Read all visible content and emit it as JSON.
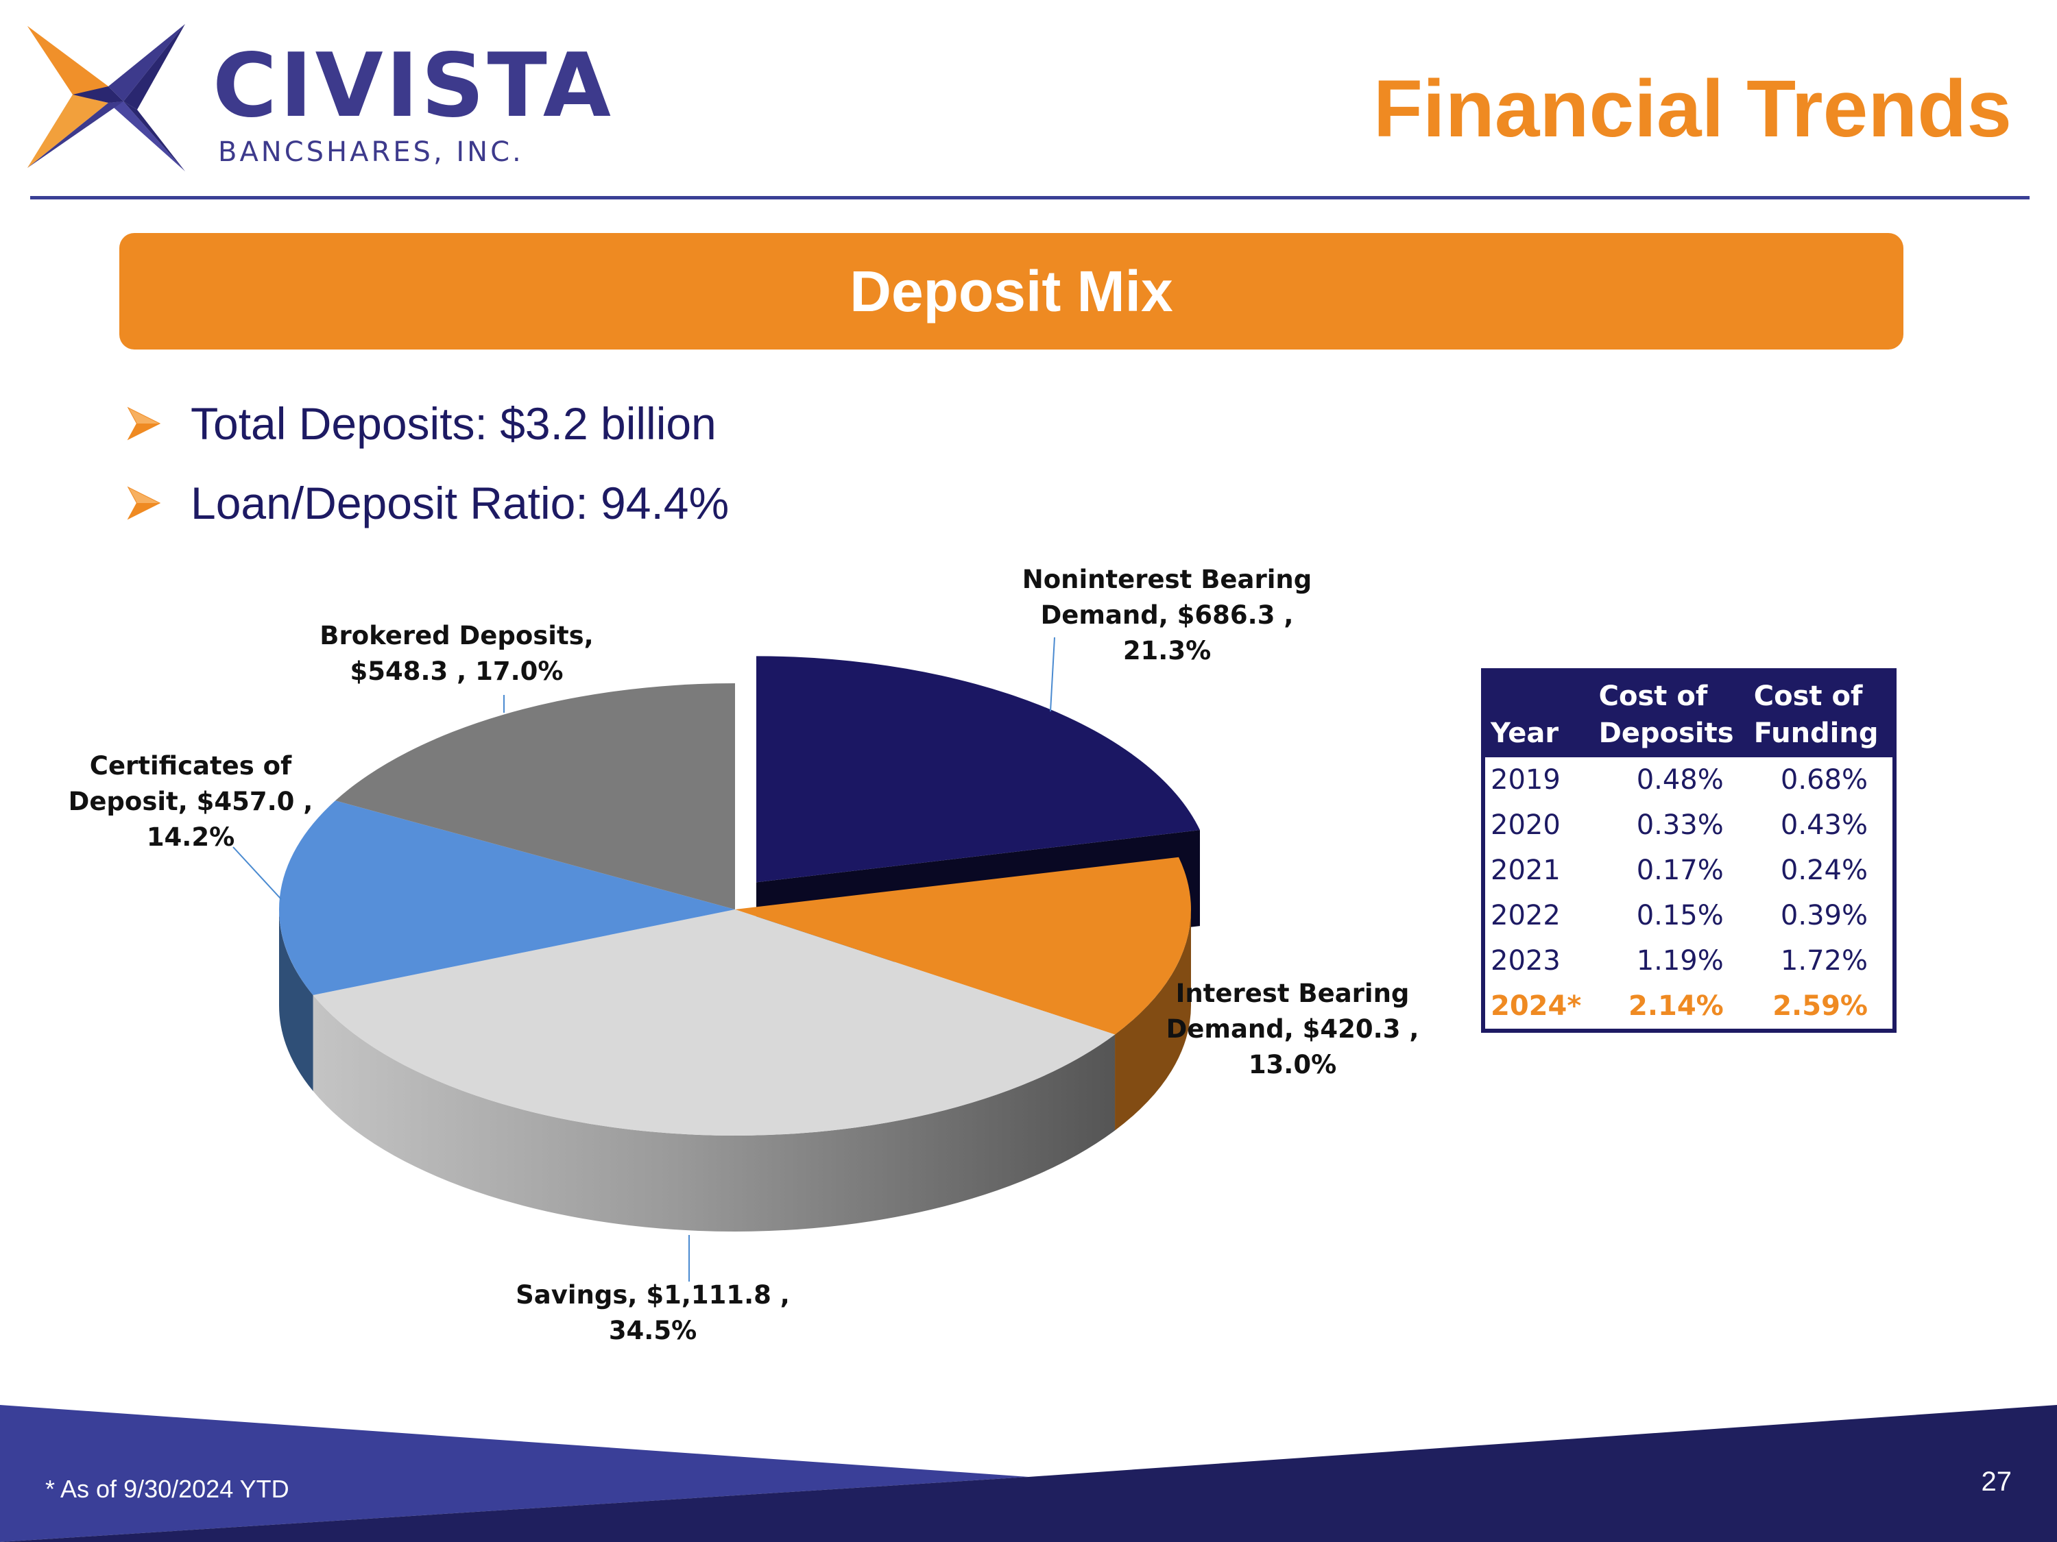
{
  "logo": {
    "name": "CIVISTA",
    "subtitle": "BANCSHARES, INC."
  },
  "header": {
    "title": "Financial Trends"
  },
  "banner": {
    "title": "Deposit Mix"
  },
  "bullets": [
    "Total Deposits: $3.2 billion",
    "Loan/Deposit Ratio: 94.4%"
  ],
  "chart_data": {
    "type": "pie",
    "style": "3d-exploded",
    "slices": [
      {
        "label": "Noninterest Bearing Demand",
        "value": 686.3,
        "percent": 21.3,
        "label_lines": [
          "Noninterest Bearing",
          "Demand, $686.3 ,",
          "21.3%"
        ],
        "color": "#1b1763",
        "exploded": true
      },
      {
        "label": "Interest Bearing Demand",
        "value": 420.3,
        "percent": 13.0,
        "label_lines": [
          "Interest Bearing",
          "Demand, $420.3 ,",
          "13.0%"
        ],
        "color": "#ec8a22"
      },
      {
        "label": "Savings",
        "value": 1111.8,
        "percent": 34.5,
        "label_lines": [
          "Savings, $1,111.8 ,",
          "34.5%"
        ],
        "color": "#d9d9d9"
      },
      {
        "label": "Certificates of Deposit",
        "value": 457.0,
        "percent": 14.2,
        "label_lines": [
          "Certificates of",
          "Deposit, $457.0 ,",
          "14.2%"
        ],
        "color": "#568fd9"
      },
      {
        "label": "Brokered Deposits",
        "value": 548.3,
        "percent": 17.0,
        "label_lines": [
          "Brokered Deposits,",
          "$548.3 , 17.0%"
        ],
        "color": "#7b7b7b"
      }
    ]
  },
  "cost_table": {
    "headers": [
      [
        "",
        "Year"
      ],
      [
        "Cost of",
        "Deposits"
      ],
      [
        "Cost of",
        "Funding"
      ]
    ],
    "rows": [
      [
        "2019",
        "0.48%",
        "0.68%"
      ],
      [
        "2020",
        "0.33%",
        "0.43%"
      ],
      [
        "2021",
        "0.17%",
        "0.24%"
      ],
      [
        "2022",
        "0.15%",
        "0.39%"
      ],
      [
        "2023",
        "1.19%",
        "1.72%"
      ],
      [
        "2024*",
        "2.14%",
        "2.59%"
      ]
    ],
    "highlight_color": "#ef8a22"
  },
  "footer": {
    "note": "* As of 9/30/2024 YTD",
    "page_number": "27"
  },
  "colors": {
    "navy": "#1d1a63",
    "orange": "#ef8a22",
    "rule": "#3a3f95"
  }
}
